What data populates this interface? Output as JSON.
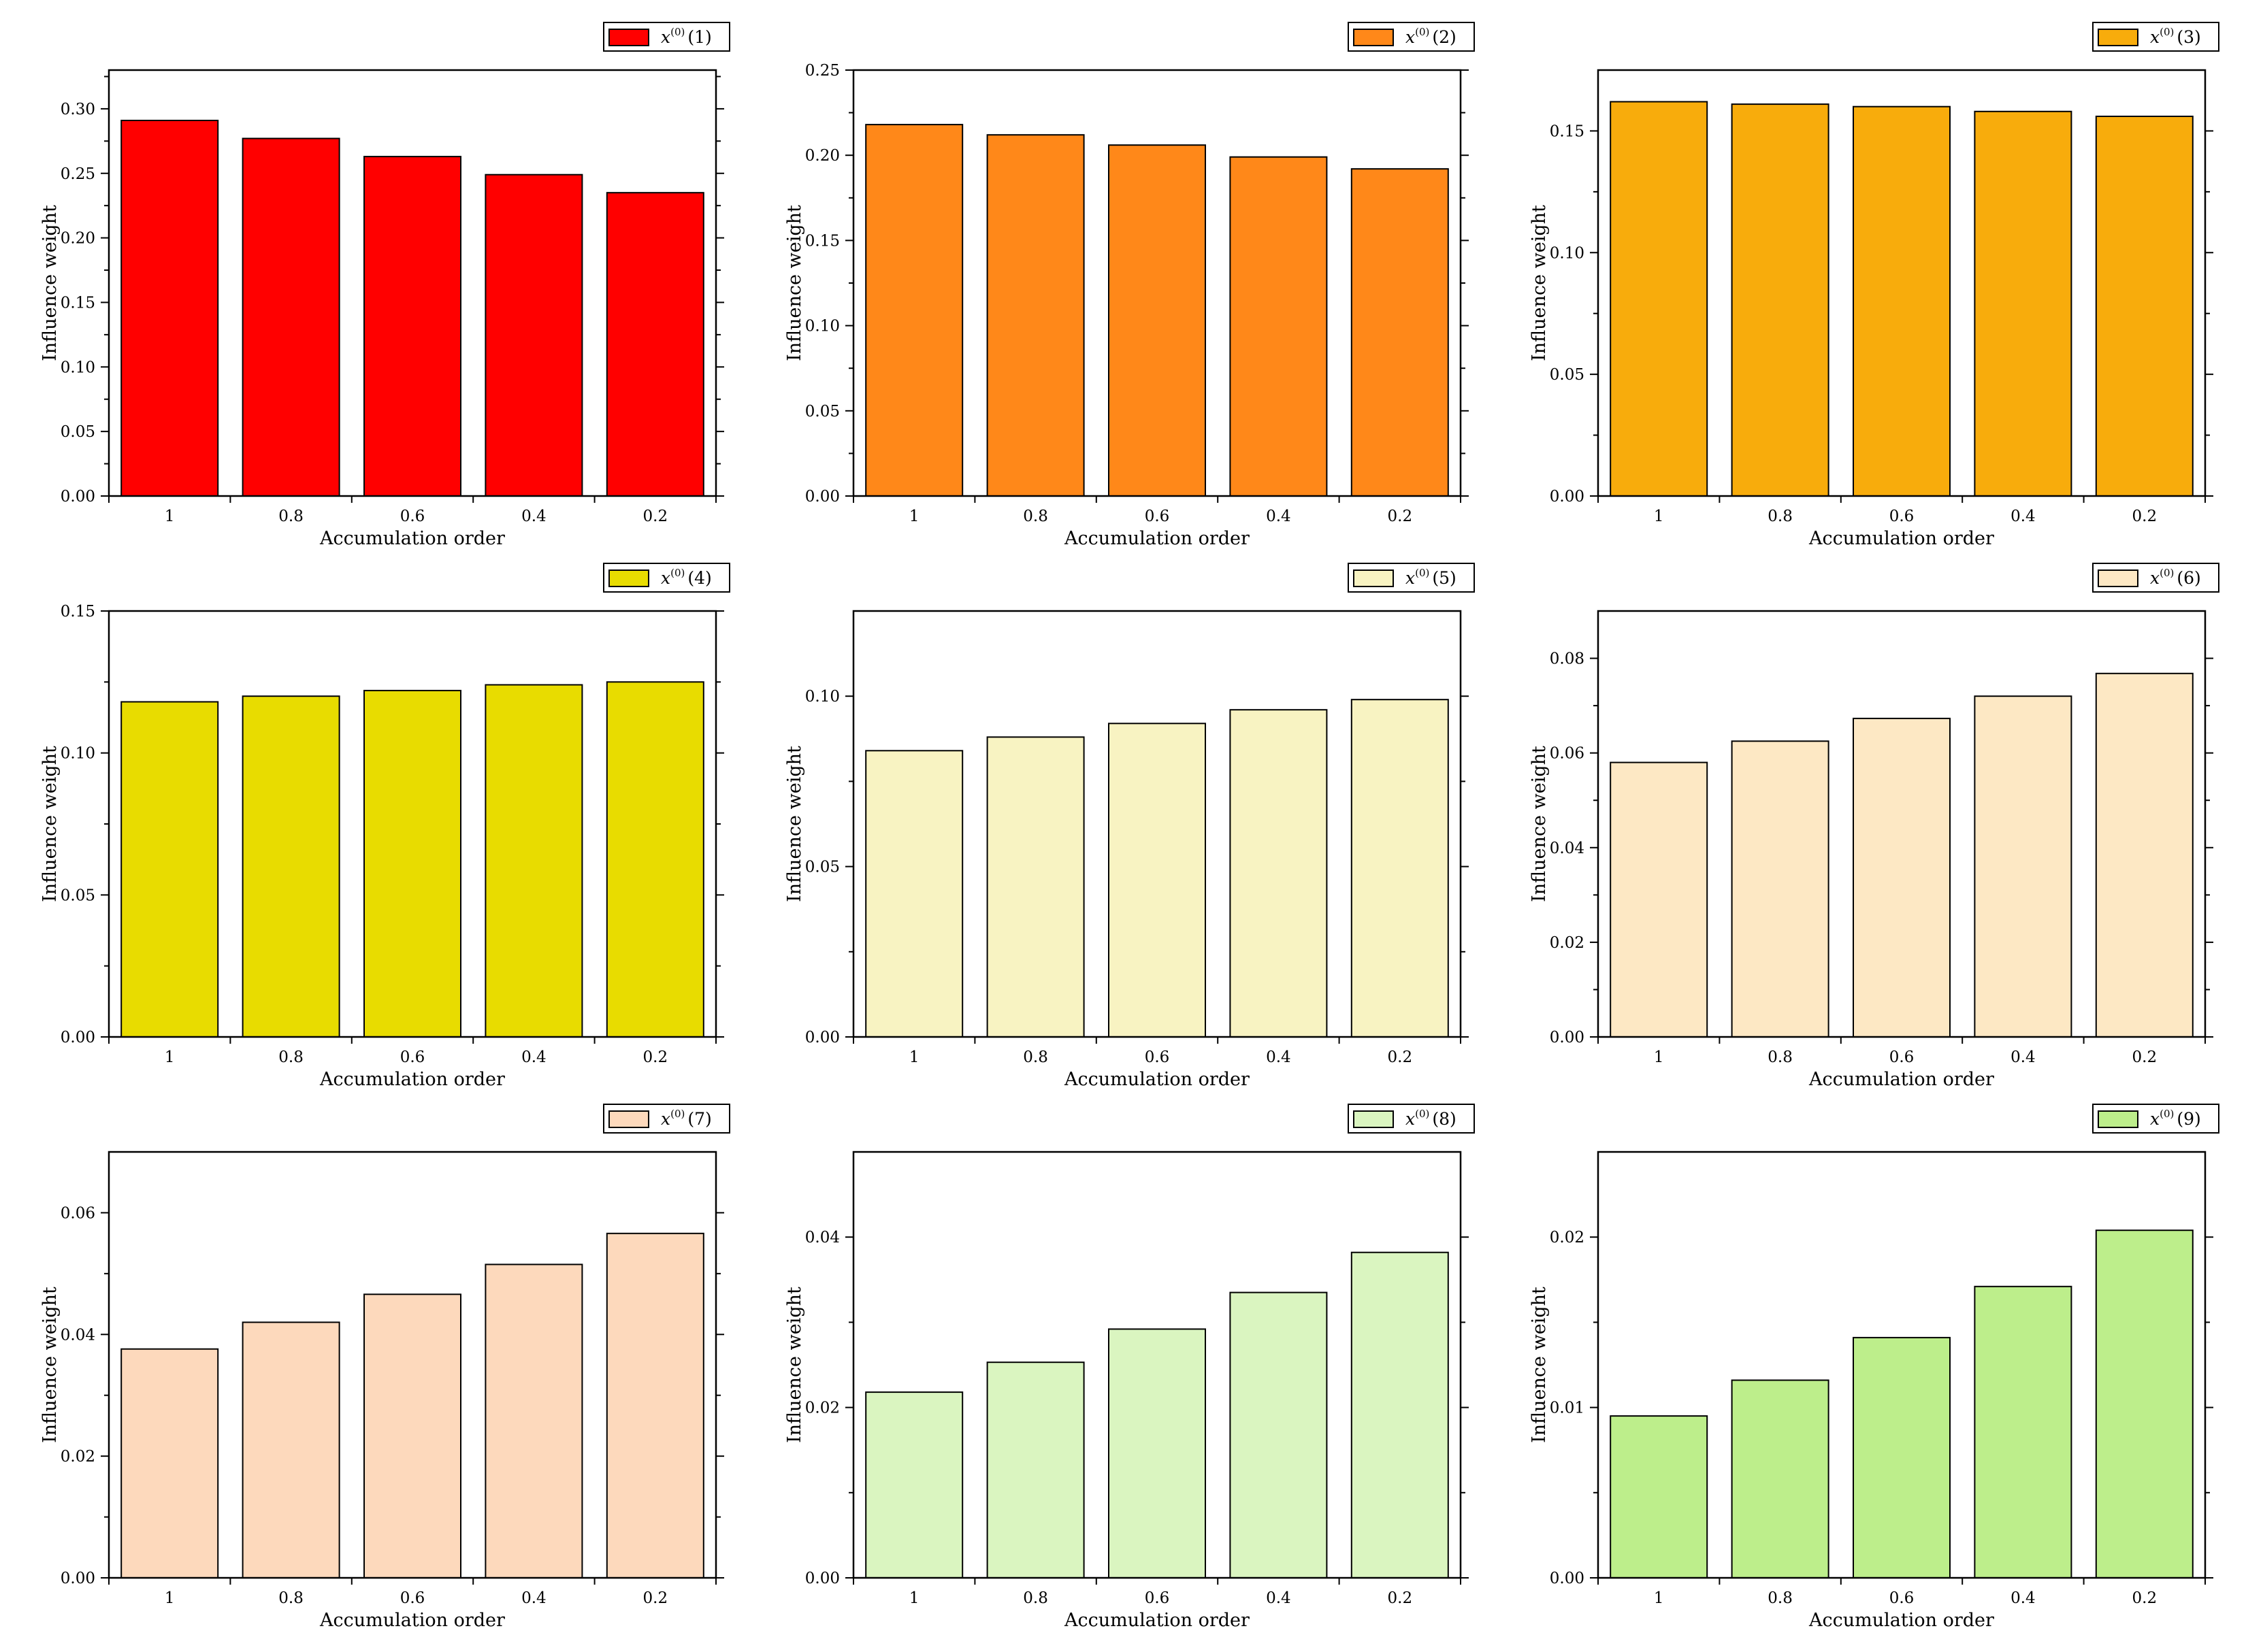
{
  "chart_data": [
    {
      "type": "bar",
      "categories": [
        "1",
        "0.8",
        "0.6",
        "0.4",
        "0.2"
      ],
      "values": [
        0.291,
        0.277,
        0.263,
        0.249,
        0.235
      ],
      "legend": {
        "base": "x",
        "sup": "(0)",
        "idx": "(1)"
      },
      "xlabel": "Accumulation order",
      "ylabel": "Influence weight",
      "ylim": [
        0,
        0.33
      ],
      "yticks": [
        0,
        0.05,
        0.1,
        0.15,
        0.2,
        0.25,
        0.3
      ],
      "ytick_labels": [
        "0.00",
        "0.05",
        "0.10",
        "0.15",
        "0.20",
        "0.25",
        "0.30"
      ],
      "color": "#ff0000"
    },
    {
      "type": "bar",
      "categories": [
        "1",
        "0.8",
        "0.6",
        "0.4",
        "0.2"
      ],
      "values": [
        0.218,
        0.212,
        0.206,
        0.199,
        0.192
      ],
      "legend": {
        "base": "x",
        "sup": "(0)",
        "idx": "(2)"
      },
      "xlabel": "Accumulation order",
      "ylabel": "Influence weight",
      "ylim": [
        0,
        0.25
      ],
      "yticks": [
        0,
        0.05,
        0.1,
        0.15,
        0.2,
        0.25
      ],
      "ytick_labels": [
        "0.00",
        "0.05",
        "0.10",
        "0.15",
        "0.20",
        "0.25"
      ],
      "color": "#ff8819"
    },
    {
      "type": "bar",
      "categories": [
        "1",
        "0.8",
        "0.6",
        "0.4",
        "0.2"
      ],
      "values": [
        0.162,
        0.161,
        0.16,
        0.158,
        0.156
      ],
      "legend": {
        "base": "x",
        "sup": "(0)",
        "idx": "(3)"
      },
      "xlabel": "Accumulation order",
      "ylabel": "Influence weight",
      "ylim": [
        0,
        0.175
      ],
      "yticks": [
        0,
        0.05,
        0.1,
        0.15
      ],
      "ytick_labels": [
        "0.00",
        "0.05",
        "0.10",
        "0.15"
      ],
      "color": "#f8ac0c"
    },
    {
      "type": "bar",
      "categories": [
        "1",
        "0.8",
        "0.6",
        "0.4",
        "0.2"
      ],
      "values": [
        0.118,
        0.12,
        0.122,
        0.124,
        0.125
      ],
      "legend": {
        "base": "x",
        "sup": "(0)",
        "idx": "(4)"
      },
      "xlabel": "Accumulation order",
      "ylabel": "Influence weight",
      "ylim": [
        0,
        0.15
      ],
      "yticks": [
        0,
        0.05,
        0.1,
        0.15
      ],
      "ytick_labels": [
        "0.00",
        "0.05",
        "0.10",
        "0.15"
      ],
      "color": "#e8dc00"
    },
    {
      "type": "bar",
      "categories": [
        "1",
        "0.8",
        "0.6",
        "0.4",
        "0.2"
      ],
      "values": [
        0.084,
        0.088,
        0.092,
        0.096,
        0.099
      ],
      "legend": {
        "base": "x",
        "sup": "(0)",
        "idx": "(5)"
      },
      "xlabel": "Accumulation order",
      "ylabel": "Influence weight",
      "ylim": [
        0,
        0.125
      ],
      "yticks": [
        0,
        0.05,
        0.1
      ],
      "ytick_labels": [
        "0.00",
        "0.05",
        "0.10"
      ],
      "color": "#f8f3c2"
    },
    {
      "type": "bar",
      "categories": [
        "1",
        "0.8",
        "0.6",
        "0.4",
        "0.2"
      ],
      "values": [
        0.058,
        0.0625,
        0.0673,
        0.072,
        0.0768
      ],
      "legend": {
        "base": "x",
        "sup": "(0)",
        "idx": "(6)"
      },
      "xlabel": "Accumulation order",
      "ylabel": "Influence weight",
      "ylim": [
        0,
        0.09
      ],
      "yticks": [
        0,
        0.02,
        0.04,
        0.06,
        0.08
      ],
      "ytick_labels": [
        "0.00",
        "0.02",
        "0.04",
        "0.06",
        "0.08"
      ],
      "color": "#fde8c4"
    },
    {
      "type": "bar",
      "categories": [
        "1",
        "0.8",
        "0.6",
        "0.4",
        "0.2"
      ],
      "values": [
        0.0376,
        0.042,
        0.0466,
        0.0515,
        0.0566
      ],
      "legend": {
        "base": "x",
        "sup": "(0)",
        "idx": "(7)"
      },
      "xlabel": "Accumulation order",
      "ylabel": "Influence weight",
      "ylim": [
        0,
        0.07
      ],
      "yticks": [
        0,
        0.02,
        0.04,
        0.06
      ],
      "ytick_labels": [
        "0.00",
        "0.02",
        "0.04",
        "0.06"
      ],
      "color": "#fdd9bc"
    },
    {
      "type": "bar",
      "categories": [
        "1",
        "0.8",
        "0.6",
        "0.4",
        "0.2"
      ],
      "values": [
        0.0218,
        0.0253,
        0.0292,
        0.0335,
        0.0382
      ],
      "legend": {
        "base": "x",
        "sup": "(0)",
        "idx": "(8)"
      },
      "xlabel": "Accumulation order",
      "ylabel": "Influence weight",
      "ylim": [
        0,
        0.05
      ],
      "yticks": [
        0,
        0.02,
        0.04
      ],
      "ytick_labels": [
        "0.00",
        "0.02",
        "0.04"
      ],
      "color": "#daf5c0"
    },
    {
      "type": "bar",
      "categories": [
        "1",
        "0.8",
        "0.6",
        "0.4",
        "0.2"
      ],
      "values": [
        0.0095,
        0.0116,
        0.0141,
        0.0171,
        0.0204
      ],
      "legend": {
        "base": "x",
        "sup": "(0)",
        "idx": "(9)"
      },
      "xlabel": "Accumulation order",
      "ylabel": "Influence weight",
      "ylim": [
        0,
        0.025
      ],
      "yticks": [
        0,
        0.01,
        0.02
      ],
      "ytick_labels": [
        "0.00",
        "0.01",
        "0.02"
      ],
      "color": "#bdee8b"
    }
  ]
}
